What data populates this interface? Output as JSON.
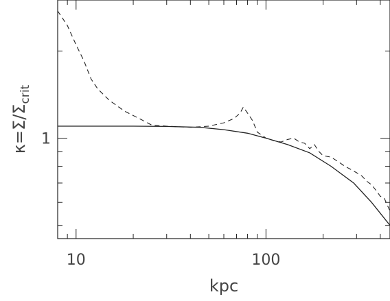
{
  "chart_data": {
    "type": "line",
    "xlabel": "kpc",
    "ylabel_parts": [
      "κ",
      "=",
      "Σ",
      "/",
      "Σ",
      "crit"
    ],
    "x_scale": "log",
    "y_scale": "log",
    "xlim": [
      8,
      450
    ],
    "ylim": [
      0.45,
      3.0
    ],
    "x_ticks": [
      {
        "value": 10,
        "label": "10"
      },
      {
        "value": 100,
        "label": "100"
      }
    ],
    "y_ticks": [
      {
        "value": 1,
        "label": "1"
      }
    ],
    "grid": false,
    "series": [
      {
        "style": "solid",
        "x": [
          8,
          12,
          20,
          30,
          45,
          60,
          80,
          100,
          130,
          170,
          220,
          290,
          360,
          450
        ],
        "y": [
          1.1,
          1.1,
          1.1,
          1.098,
          1.09,
          1.07,
          1.04,
          1.0,
          0.95,
          0.89,
          0.8,
          0.7,
          0.6,
          0.5
        ]
      },
      {
        "style": "dashed",
        "x": [
          8,
          9,
          10,
          11,
          12,
          13,
          15,
          18,
          22,
          25,
          30,
          40,
          50,
          60,
          68,
          73,
          76,
          80,
          85,
          90,
          100,
          110,
          120,
          130,
          140,
          150,
          160,
          170,
          180,
          190,
          200,
          220,
          240,
          260,
          280,
          300,
          320,
          340,
          360,
          380,
          400,
          420,
          450
        ],
        "y": [
          2.75,
          2.45,
          2.1,
          1.85,
          1.6,
          1.48,
          1.35,
          1.24,
          1.16,
          1.11,
          1.1,
          1.09,
          1.1,
          1.13,
          1.17,
          1.22,
          1.28,
          1.22,
          1.15,
          1.05,
          1.0,
          0.98,
          0.97,
          0.99,
          1.0,
          0.97,
          0.96,
          0.92,
          0.95,
          0.9,
          0.87,
          0.86,
          0.83,
          0.8,
          0.78,
          0.76,
          0.74,
          0.71,
          0.69,
          0.66,
          0.63,
          0.62,
          0.56
        ]
      }
    ]
  }
}
